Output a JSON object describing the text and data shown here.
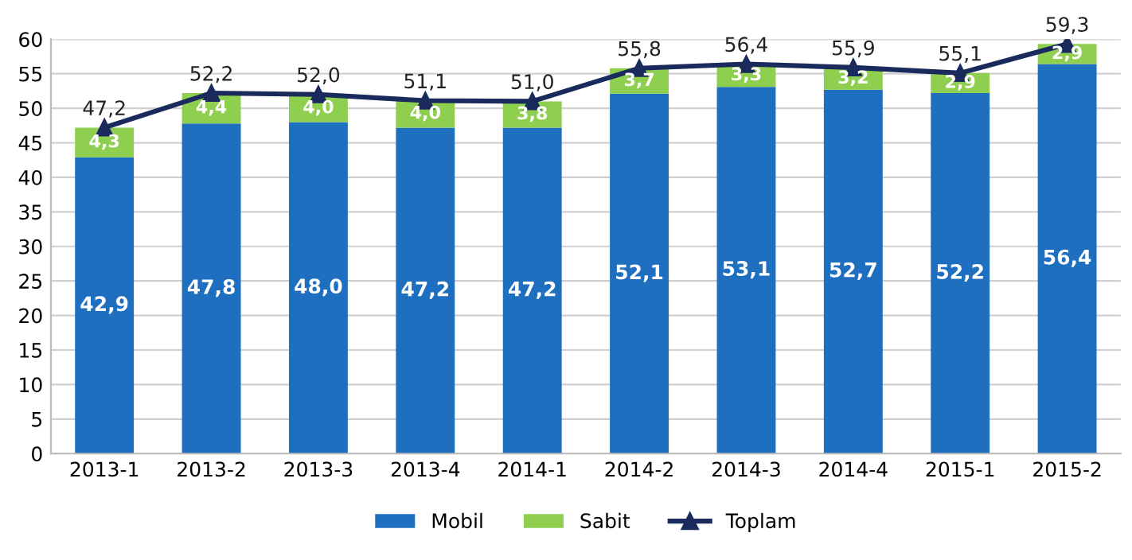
{
  "chart_data": {
    "type": "bar",
    "stacked": true,
    "categories": [
      "2013-1",
      "2013-2",
      "2013-3",
      "2013-4",
      "2014-1",
      "2014-2",
      "2014-3",
      "2014-4",
      "2015-1",
      "2015-2"
    ],
    "series": [
      {
        "name": "Mobil",
        "color": "#1f6fc0",
        "values": [
          42.9,
          47.8,
          48.0,
          47.2,
          47.2,
          52.1,
          53.1,
          52.7,
          52.2,
          56.4
        ],
        "value_labels": [
          "42,9",
          "47,8",
          "48,0",
          "47,2",
          "47,2",
          "52,1",
          "53,1",
          "52,7",
          "52,2",
          "56,4"
        ]
      },
      {
        "name": "Sabit",
        "color": "#8fcf4f",
        "values": [
          4.3,
          4.4,
          4.0,
          4.0,
          3.8,
          3.7,
          3.3,
          3.2,
          2.9,
          2.9
        ],
        "value_labels": [
          "4,3",
          "4,4",
          "4,0",
          "4,0",
          "3,8",
          "3,7",
          "3,3",
          "3,2",
          "2,9",
          "2,9"
        ]
      },
      {
        "name": "Toplam",
        "type": "line",
        "color": "#1b2a5c",
        "marker": "triangle",
        "values": [
          47.2,
          52.2,
          52.0,
          51.1,
          51.0,
          55.8,
          56.4,
          55.9,
          55.1,
          59.3
        ],
        "value_labels": [
          "47,2",
          "52,2",
          "52,0",
          "51,1",
          "51,0",
          "55,8",
          "56,4",
          "55,9",
          "55,1",
          "59,3"
        ]
      }
    ],
    "ylim": [
      0,
      60
    ],
    "yticks": [
      0,
      5,
      10,
      15,
      20,
      25,
      30,
      35,
      40,
      45,
      50,
      55,
      60
    ],
    "grid": "y",
    "legend": "bottom"
  }
}
